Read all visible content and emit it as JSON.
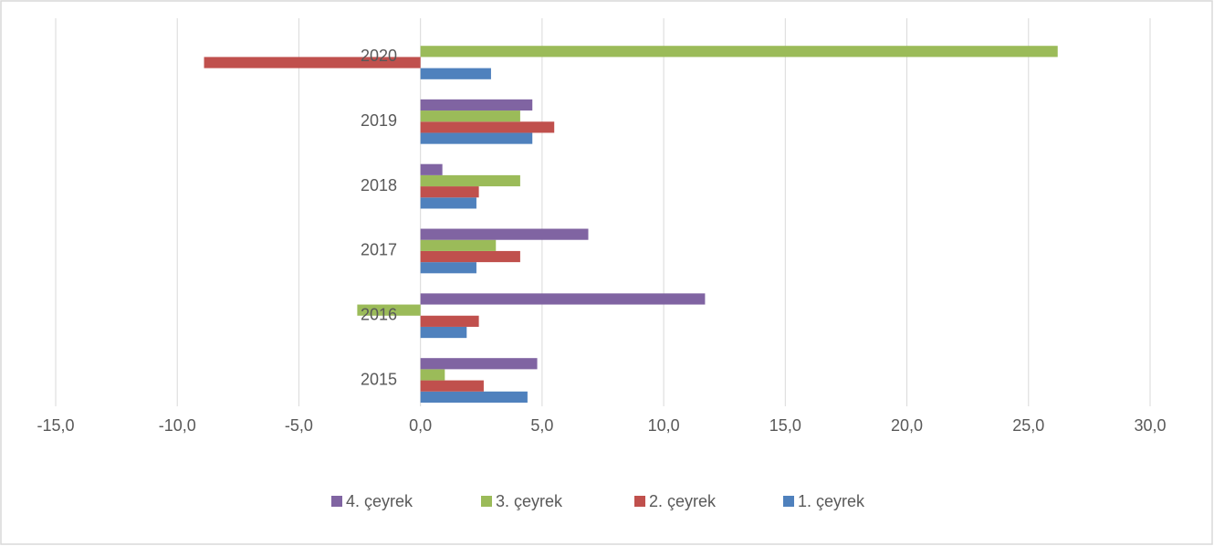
{
  "chart_data": {
    "type": "hbar",
    "categories": [
      "2015",
      "2016",
      "2017",
      "2018",
      "2019",
      "2020"
    ],
    "series": [
      {
        "name": "1. çeyrek",
        "color": "#4f81bd",
        "values": [
          4.4,
          1.9,
          2.3,
          2.3,
          4.6,
          2.9
        ]
      },
      {
        "name": "2. çeyrek",
        "color": "#c0504d",
        "values": [
          2.6,
          2.4,
          4.1,
          2.4,
          5.5,
          -8.9
        ]
      },
      {
        "name": "3. çeyrek",
        "color": "#9bbb59",
        "values": [
          1.0,
          -2.6,
          3.1,
          4.1,
          4.1,
          26.2
        ]
      },
      {
        "name": "4. çeyrek",
        "color": "#8064a2",
        "values": [
          4.8,
          11.7,
          6.9,
          0.9,
          4.6,
          null
        ]
      }
    ],
    "xlim": [
      -15,
      30
    ],
    "xticks": [
      {
        "value": -15,
        "label": "-15,0"
      },
      {
        "value": -10,
        "label": "-10,0"
      },
      {
        "value": -5,
        "label": "-5,0"
      },
      {
        "value": 0,
        "label": "0,0"
      },
      {
        "value": 5,
        "label": "5,0"
      },
      {
        "value": 10,
        "label": "10,0"
      },
      {
        "value": 15,
        "label": "15,0"
      },
      {
        "value": 20,
        "label": "20,0"
      },
      {
        "value": 25,
        "label": "25,0"
      },
      {
        "value": 30,
        "label": "30,0"
      }
    ],
    "grid": true
  }
}
